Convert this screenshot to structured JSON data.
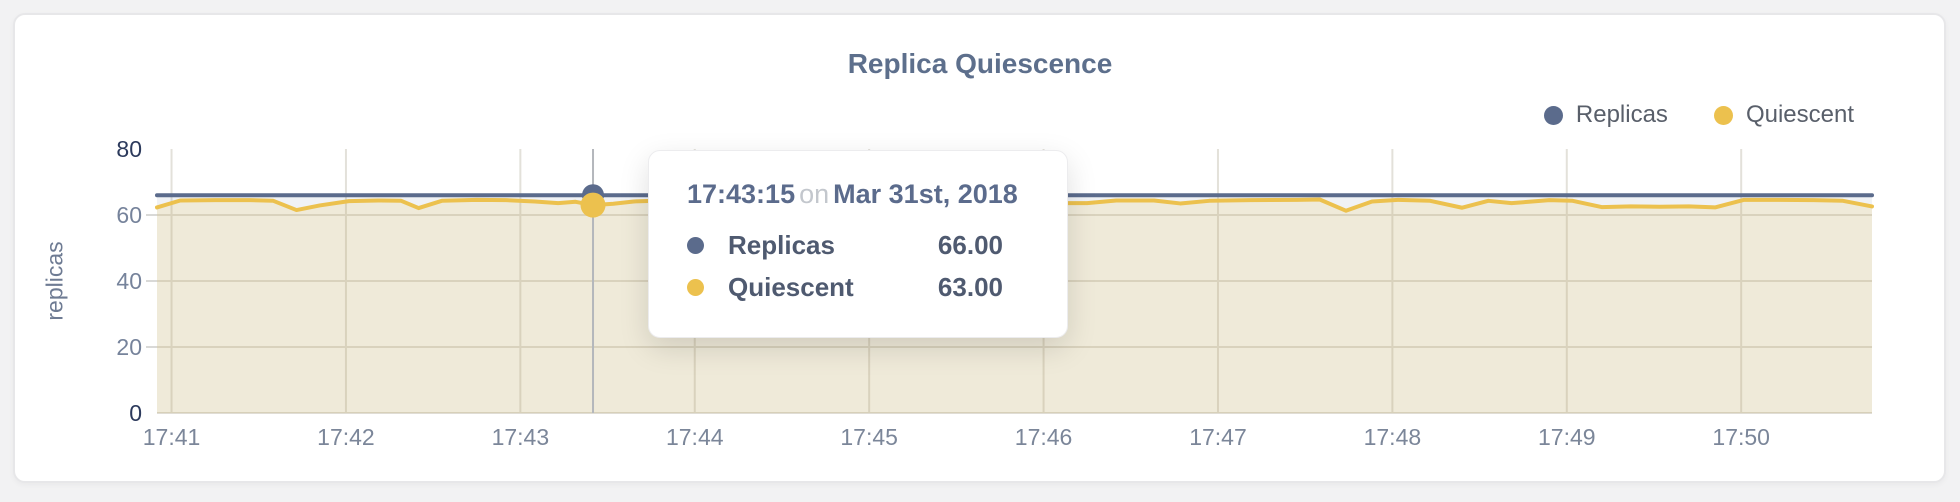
{
  "chart": {
    "title": "Replica Quiescence"
  },
  "chart_data": {
    "type": "area",
    "title": "Replica Quiescence",
    "xlabel": "",
    "ylabel": "replicas",
    "ylim": [
      0,
      80
    ],
    "yticks": [
      0,
      20,
      40,
      60,
      80
    ],
    "ytick_edge_color": "#2c3a5c",
    "ytick_mid_color": "#76839b",
    "xtick_color": "#7b8699",
    "grid": true,
    "grid_color": "#e3e1da",
    "crosshair_color": "#b4b7bc",
    "legend_position": "top-right",
    "x_domain_seconds": [
      0,
      590
    ],
    "x_domain_note": "seconds elapsed; minute gridlines labeled 17:41 through 17:50",
    "xticks": [
      {
        "label": "17:41",
        "t": 5
      },
      {
        "label": "17:42",
        "t": 65
      },
      {
        "label": "17:43",
        "t": 125
      },
      {
        "label": "17:44",
        "t": 185
      },
      {
        "label": "17:45",
        "t": 245
      },
      {
        "label": "17:46",
        "t": 305
      },
      {
        "label": "17:47",
        "t": 365
      },
      {
        "label": "17:48",
        "t": 425
      },
      {
        "label": "17:49",
        "t": 485
      },
      {
        "label": "17:50",
        "t": 545
      }
    ],
    "series": [
      {
        "name": "Replicas",
        "color": "#5b6b8c",
        "fill": "rgba(91,107,140,0.09)",
        "points": [
          [
            0,
            66
          ],
          [
            590,
            66
          ]
        ]
      },
      {
        "name": "Quiescent",
        "color": "#ecc14e",
        "fill": "rgba(238,194,77,0.16)",
        "points": [
          [
            0,
            62.3
          ],
          [
            8,
            64.4
          ],
          [
            20,
            64.5
          ],
          [
            32,
            64.5
          ],
          [
            40,
            64.3
          ],
          [
            48,
            61.5
          ],
          [
            56,
            62.9
          ],
          [
            66,
            64.2
          ],
          [
            76,
            64.4
          ],
          [
            84,
            64.3
          ],
          [
            90,
            62.1
          ],
          [
            98,
            64.3
          ],
          [
            110,
            64.6
          ],
          [
            120,
            64.5
          ],
          [
            130,
            64.1
          ],
          [
            138,
            63.6
          ],
          [
            144,
            64.0
          ],
          [
            150,
            63.0
          ],
          [
            157,
            63.4
          ],
          [
            164,
            64.1
          ],
          [
            172,
            64.3
          ],
          [
            183,
            62.5
          ],
          [
            192,
            64.1
          ],
          [
            203,
            64.4
          ],
          [
            213,
            63.0
          ],
          [
            222,
            64.3
          ],
          [
            232,
            64.5
          ],
          [
            242,
            62.3
          ],
          [
            252,
            64.0
          ],
          [
            262,
            64.4
          ],
          [
            272,
            62.6
          ],
          [
            282,
            64.2
          ],
          [
            292,
            64.5
          ],
          [
            302,
            63.2
          ],
          [
            312,
            63.6
          ],
          [
            320,
            63.6
          ],
          [
            330,
            64.4
          ],
          [
            343,
            64.4
          ],
          [
            352,
            63.5
          ],
          [
            362,
            64.3
          ],
          [
            376,
            64.5
          ],
          [
            392,
            64.6
          ],
          [
            400,
            64.7
          ],
          [
            409,
            61.3
          ],
          [
            418,
            64.1
          ],
          [
            427,
            64.6
          ],
          [
            438,
            64.3
          ],
          [
            449,
            62.2
          ],
          [
            458,
            64.3
          ],
          [
            466,
            63.6
          ],
          [
            472,
            64.0
          ],
          [
            479,
            64.5
          ],
          [
            487,
            64.3
          ],
          [
            497,
            62.4
          ],
          [
            507,
            62.6
          ],
          [
            517,
            62.5
          ],
          [
            527,
            62.6
          ],
          [
            536,
            62.3
          ],
          [
            546,
            64.6
          ],
          [
            558,
            64.6
          ],
          [
            570,
            64.5
          ],
          [
            580,
            64.3
          ],
          [
            590,
            62.6
          ]
        ]
      }
    ],
    "hover": {
      "t": 150,
      "time": "17:43:15",
      "values": [
        66,
        63
      ]
    }
  },
  "tooltip": {
    "time": "17:43:15",
    "connector": "on",
    "date": "Mar 31st, 2018",
    "rows": [
      {
        "label": "Replicas",
        "value": "66.00",
        "color": "#5b6b8c"
      },
      {
        "label": "Quiescent",
        "value": "63.00",
        "color": "#ecc14e"
      }
    ]
  }
}
